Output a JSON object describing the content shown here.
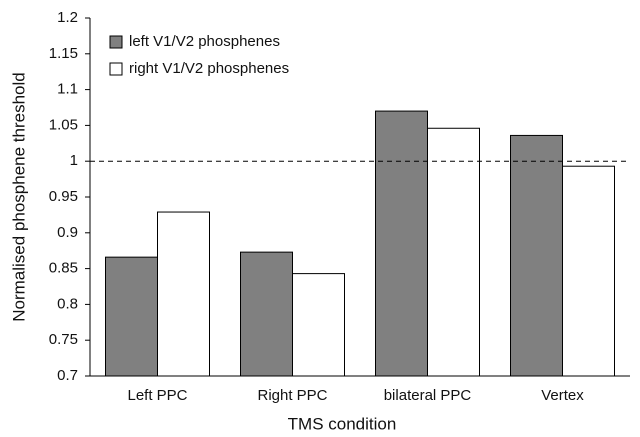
{
  "chart_data": {
    "type": "bar",
    "xlabel": "TMS condition",
    "ylabel": "Normalised phosphene threshold",
    "categories": [
      "Left PPC",
      "Right PPC",
      "bilateral PPC",
      "Vertex"
    ],
    "series": [
      {
        "name": "left V1/V2 phosphenes",
        "color": "#808080",
        "values": [
          0.866,
          0.873,
          1.07,
          1.036
        ]
      },
      {
        "name": "right V1/V2 phosphenes",
        "color": "#ffffff",
        "values": [
          0.929,
          0.843,
          1.046,
          0.993
        ]
      }
    ],
    "ylim": [
      0.7,
      1.2
    ],
    "yticks": [
      0.7,
      0.75,
      0.8,
      0.85,
      0.9,
      0.95,
      1,
      1.05,
      1.1,
      1.15,
      1.2
    ],
    "reference_line": 1,
    "legend": "upper left",
    "grid": false
  }
}
